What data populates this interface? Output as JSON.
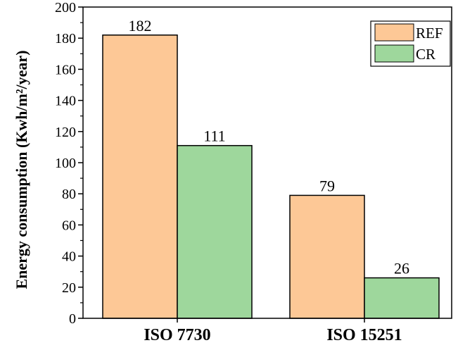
{
  "chart_data": {
    "type": "bar",
    "title": "",
    "xlabel": "",
    "ylabel": "Energy consumption (Kwh/m²/year)",
    "categories": [
      "ISO 7730",
      "ISO 15251"
    ],
    "series": [
      {
        "name": "REF",
        "values": [
          182,
          79
        ],
        "color": "#FDC896"
      },
      {
        "name": "CR",
        "values": [
          111,
          26
        ],
        "color": "#9ED79C"
      }
    ],
    "data_labels": [
      [
        "182",
        "79"
      ],
      [
        "111",
        "26"
      ]
    ],
    "ylim": [
      0,
      200
    ],
    "yticks": [
      0,
      20,
      40,
      60,
      80,
      100,
      120,
      140,
      160,
      180,
      200
    ],
    "ytick_labels": [
      "0",
      "20",
      "40",
      "60",
      "80",
      "100",
      "120",
      "140",
      "160",
      "180",
      "200"
    ],
    "grid": false,
    "legend_position": "top-right"
  }
}
